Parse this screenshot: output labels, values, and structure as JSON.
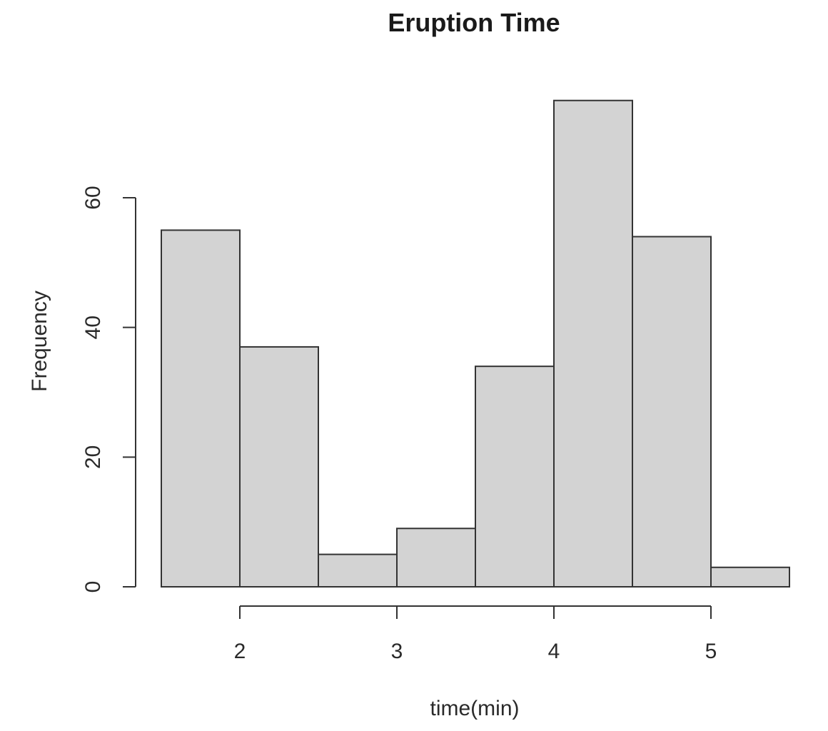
{
  "chart_data": {
    "type": "bar",
    "title": "Eruption Time",
    "xlabel": "time(min)",
    "ylabel": "Frequency",
    "bins": [
      {
        "start": 1.5,
        "end": 2.0,
        "value": 55
      },
      {
        "start": 2.0,
        "end": 2.5,
        "value": 37
      },
      {
        "start": 2.5,
        "end": 3.0,
        "value": 5
      },
      {
        "start": 3.0,
        "end": 3.5,
        "value": 9
      },
      {
        "start": 3.5,
        "end": 4.0,
        "value": 34
      },
      {
        "start": 4.0,
        "end": 4.5,
        "value": 75
      },
      {
        "start": 4.5,
        "end": 5.0,
        "value": 54
      },
      {
        "start": 5.0,
        "end": 5.5,
        "value": 3
      }
    ],
    "xticks": [
      2,
      3,
      4,
      5
    ],
    "yticks": [
      0,
      20,
      40,
      60
    ],
    "xlim": [
      1.5,
      5.5
    ],
    "ylim": [
      0,
      75
    ],
    "bar_color": "#d3d3d3",
    "grid": false,
    "legend": "none"
  }
}
